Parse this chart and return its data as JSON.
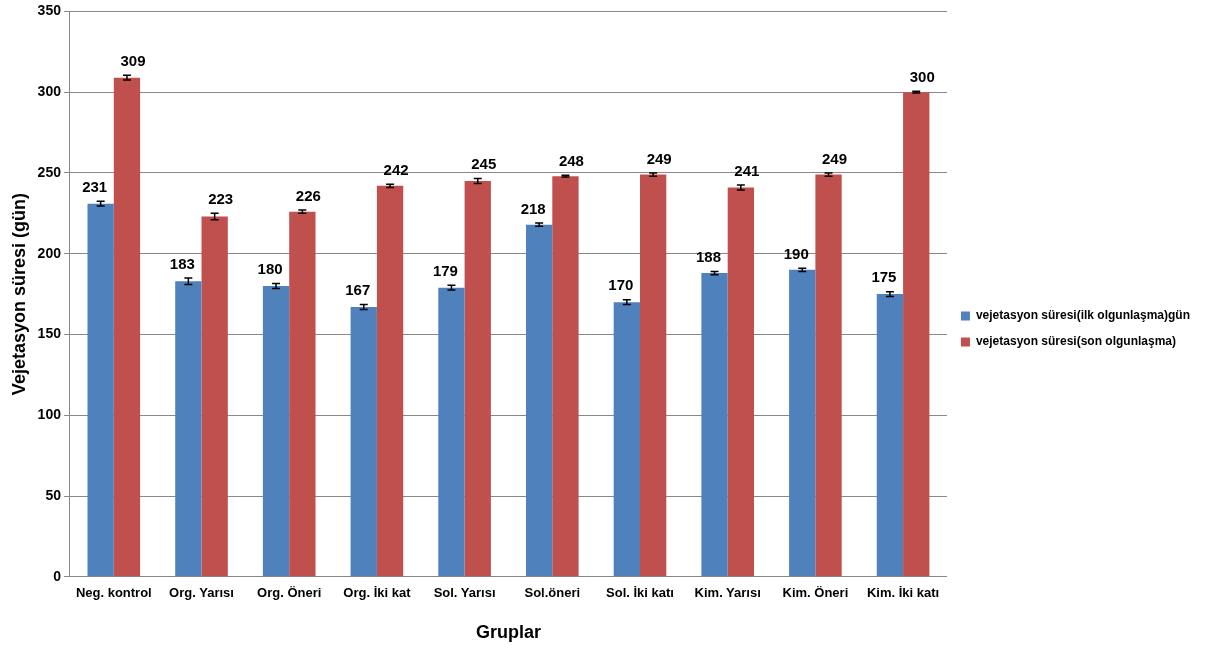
{
  "chart_data": {
    "type": "bar",
    "xlabel": "Gruplar",
    "ylabel": "Vejetasyon süresi (gün)",
    "categories": [
      "Neg. kontrol",
      "Org. Yarısı",
      "Org. Öneri",
      "Org. İki kat",
      "Sol. Yarısı",
      "Sol.öneri",
      "Sol. İki katı",
      "Kim. Yarısı",
      "Kim. Öneri",
      "Kim. İki katı"
    ],
    "series": [
      {
        "name": "vejetasyon süresi(ilk olgunlaşma)gün",
        "color": "#4f81bd",
        "values": [
          231,
          183,
          180,
          167,
          179,
          218,
          170,
          188,
          190,
          175
        ],
        "errors": [
          1.5,
          2,
          1.5,
          1.5,
          1.5,
          1,
          1.5,
          1,
          1,
          1.5
        ]
      },
      {
        "name": "vejetasyon süresi(son olgunlaşma)",
        "color": "#c0504d",
        "values": [
          309,
          223,
          226,
          242,
          245,
          248,
          249,
          241,
          249,
          300
        ],
        "errors": [
          1.5,
          2,
          1,
          1,
          1.5,
          0.5,
          1,
          1.5,
          1,
          0.5
        ]
      }
    ],
    "ylim": [
      0,
      350
    ],
    "yticks": [
      0,
      50,
      100,
      150,
      200,
      250,
      300,
      350
    ],
    "grid": "y",
    "legend": "right",
    "data_labels": true
  }
}
